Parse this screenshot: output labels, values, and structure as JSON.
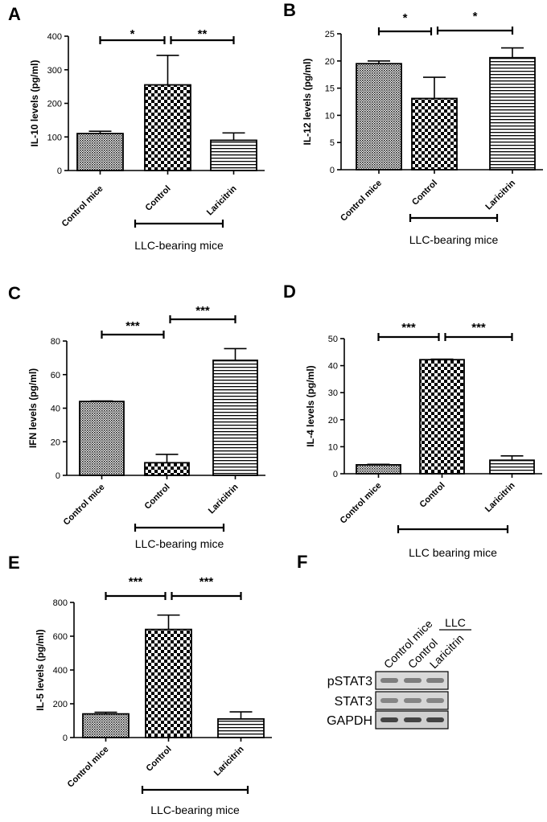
{
  "chart_data": [
    {
      "panel": "A",
      "type": "bar",
      "categories": [
        "Control mice",
        "Control",
        "Laricitrin"
      ],
      "values": [
        110,
        255,
        90
      ],
      "errors": [
        7,
        88,
        22
      ],
      "ylabel": "IL-10 levels (pg/ml)",
      "ylim": [
        0,
        400
      ],
      "yticks": [
        0,
        100,
        200,
        300,
        400
      ],
      "patterns": [
        "fine",
        "checker",
        "hlines"
      ],
      "significance": [
        {
          "from": 0,
          "to": 1,
          "label": "*"
        },
        {
          "from": 1,
          "to": 2,
          "label": "**"
        }
      ],
      "group_label": "LLC-bearing mice"
    },
    {
      "panel": "B",
      "type": "bar",
      "categories": [
        "Control mice",
        "Control",
        "Laricitrin"
      ],
      "values": [
        19.5,
        13.1,
        20.6
      ],
      "errors": [
        0.5,
        3.9,
        1.8
      ],
      "ylabel": "IL-12 levels (pg/ml)",
      "ylim": [
        0,
        25
      ],
      "yticks": [
        0,
        5,
        10,
        15,
        20,
        25
      ],
      "patterns": [
        "fine",
        "checker",
        "hlines"
      ],
      "significance": [
        {
          "from": 0,
          "to": 1,
          "label": "*"
        },
        {
          "from": 1,
          "to": 2,
          "label": "*"
        }
      ],
      "group_label": "LLC-bearing mice"
    },
    {
      "panel": "C",
      "type": "bar",
      "categories": [
        "Control mice",
        "Control",
        "Laricitrin"
      ],
      "values": [
        44,
        7.5,
        68.5
      ],
      "errors": [
        0.3,
        5,
        7
      ],
      "ylabel": "IFN levels (pg/ml)",
      "ylim": [
        0,
        80
      ],
      "yticks": [
        0,
        20,
        40,
        60,
        80
      ],
      "patterns": [
        "fine",
        "checker",
        "hlines"
      ],
      "significance": [
        {
          "from": 0,
          "to": 1,
          "label": "***"
        },
        {
          "from": 1,
          "to": 2,
          "label": "***"
        }
      ],
      "group_label": "LLC-bearing mice"
    },
    {
      "panel": "D",
      "type": "bar",
      "categories": [
        "Control mice",
        "Control",
        "Laricitrin"
      ],
      "values": [
        3.3,
        42.2,
        5
      ],
      "errors": [
        0.2,
        0.2,
        1.6
      ],
      "ylabel": "IL-4 levels (pg/ml)",
      "ylim": [
        0,
        50
      ],
      "yticks": [
        0,
        10,
        20,
        30,
        40,
        50
      ],
      "patterns": [
        "fine",
        "checker",
        "hlines"
      ],
      "significance": [
        {
          "from": 0,
          "to": 1,
          "label": "***"
        },
        {
          "from": 1,
          "to": 2,
          "label": "***"
        }
      ],
      "group_label": "LLC bearing mice"
    },
    {
      "panel": "E",
      "type": "bar",
      "categories": [
        "Control mice",
        "Control",
        "Laricitrin"
      ],
      "values": [
        140,
        640,
        110
      ],
      "errors": [
        10,
        85,
        42
      ],
      "ylabel": "IL-5 levels (pg/ml)",
      "ylim": [
        0,
        800
      ],
      "yticks": [
        0,
        200,
        400,
        600,
        800
      ],
      "patterns": [
        "fine",
        "checker",
        "hlines"
      ],
      "significance": [
        {
          "from": 0,
          "to": 1,
          "label": "***"
        },
        {
          "from": 1,
          "to": 2,
          "label": "***"
        }
      ],
      "group_label": "LLC-bearing mice"
    }
  ],
  "blot": {
    "panel": "F",
    "lanes": [
      "Control mice",
      "Control",
      "Laricitrin"
    ],
    "group_label": "LLC",
    "rows": [
      "pSTAT3",
      "STAT3",
      "GAPDH"
    ]
  }
}
